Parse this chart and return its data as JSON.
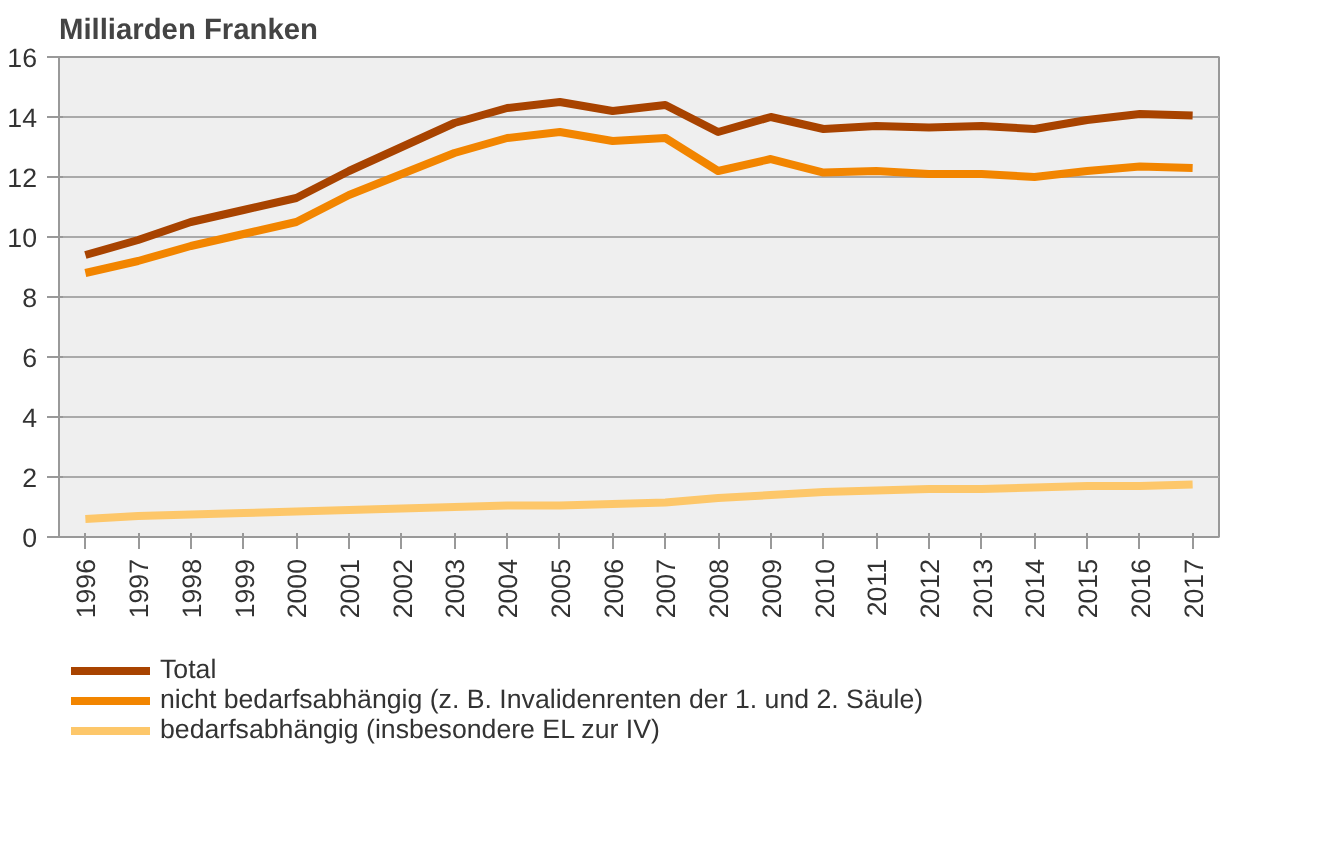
{
  "chart_data": {
    "type": "line",
    "title": "Milliarden Franken",
    "categories": [
      "1996",
      "1997",
      "1998",
      "1999",
      "2000",
      "2001",
      "2002",
      "2003",
      "2004",
      "2005",
      "2006",
      "2007",
      "2008",
      "2009",
      "2010",
      "2011",
      "2012",
      "2013",
      "2014",
      "2015",
      "2016",
      "2017"
    ],
    "series": [
      {
        "name": "Total",
        "color": "#a84300",
        "values": [
          9.4,
          9.9,
          10.5,
          10.9,
          11.3,
          12.2,
          13.0,
          13.8,
          14.3,
          14.5,
          14.2,
          14.4,
          13.5,
          14.0,
          13.6,
          13.7,
          13.65,
          13.7,
          13.6,
          13.9,
          14.1,
          14.05
        ]
      },
      {
        "name": "nicht bedarfsabhängig (z. B. Invalidenrenten der 1. und 2. Säule)",
        "color": "#f28500",
        "values": [
          8.8,
          9.2,
          9.7,
          10.1,
          10.5,
          11.4,
          12.1,
          12.8,
          13.3,
          13.5,
          13.2,
          13.3,
          12.2,
          12.6,
          12.15,
          12.2,
          12.1,
          12.1,
          12.0,
          12.2,
          12.35,
          12.3
        ]
      },
      {
        "name": "bedarfsabhängig (insbesondere EL zur IV)",
        "color": "#fdc76a",
        "values": [
          0.6,
          0.7,
          0.75,
          0.8,
          0.85,
          0.9,
          0.95,
          1.0,
          1.05,
          1.05,
          1.1,
          1.15,
          1.3,
          1.4,
          1.5,
          1.55,
          1.6,
          1.6,
          1.65,
          1.7,
          1.7,
          1.75
        ]
      }
    ],
    "ylim": [
      0,
      16
    ],
    "yticks": [
      0,
      2,
      4,
      6,
      8,
      10,
      12,
      14,
      16
    ],
    "grid": "y",
    "legend": "bottom",
    "marker": "none",
    "line_style": "solid"
  }
}
